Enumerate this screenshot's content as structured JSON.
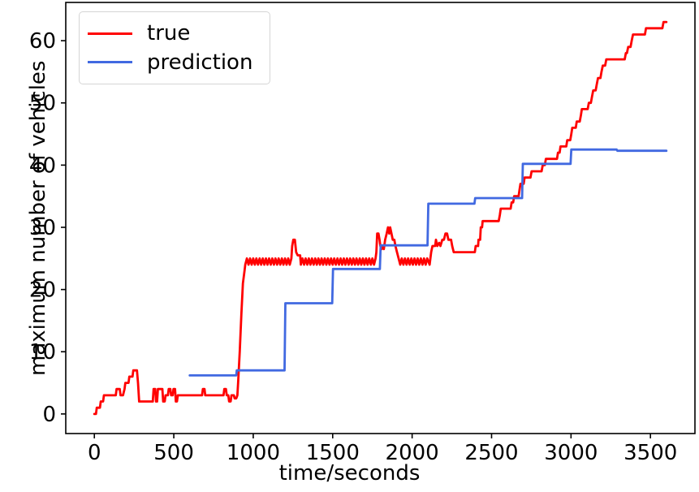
{
  "chart_data": {
    "type": "line",
    "title": "",
    "xlabel": "time/seconds",
    "ylabel": "maximum number of vehicles",
    "xlim": [
      -180,
      3780
    ],
    "ylim": [
      -3.15,
      66.15
    ],
    "x_ticks": [
      0,
      500,
      1000,
      1500,
      2000,
      2500,
      3000,
      3500
    ],
    "y_ticks": [
      0,
      10,
      20,
      30,
      40,
      50,
      60
    ],
    "grid": false,
    "legend_position": "upper-left",
    "spine_color": "#000000",
    "series": [
      {
        "name": "true",
        "color": "#ff0000",
        "points": [
          [
            0,
            0
          ],
          [
            10,
            0
          ],
          [
            15,
            1
          ],
          [
            35,
            1
          ],
          [
            40,
            2
          ],
          [
            55,
            2
          ],
          [
            60,
            3
          ],
          [
            135,
            3
          ],
          [
            140,
            4
          ],
          [
            160,
            4
          ],
          [
            165,
            3
          ],
          [
            180,
            3
          ],
          [
            190,
            4
          ],
          [
            195,
            5
          ],
          [
            215,
            5
          ],
          [
            220,
            6
          ],
          [
            240,
            6
          ],
          [
            245,
            7
          ],
          [
            268,
            7
          ],
          [
            275,
            5
          ],
          [
            282,
            2
          ],
          [
            368,
            2
          ],
          [
            373,
            4
          ],
          [
            383,
            4
          ],
          [
            388,
            2
          ],
          [
            395,
            2
          ],
          [
            400,
            4
          ],
          [
            428,
            4
          ],
          [
            433,
            2
          ],
          [
            443,
            2
          ],
          [
            448,
            3
          ],
          [
            463,
            3
          ],
          [
            468,
            4
          ],
          [
            478,
            4
          ],
          [
            483,
            3
          ],
          [
            493,
            3
          ],
          [
            498,
            4
          ],
          [
            508,
            4
          ],
          [
            513,
            2
          ],
          [
            520,
            2
          ],
          [
            525,
            3
          ],
          [
            678,
            3
          ],
          [
            683,
            4
          ],
          [
            693,
            4
          ],
          [
            698,
            3
          ],
          [
            813,
            3
          ],
          [
            818,
            4
          ],
          [
            828,
            4
          ],
          [
            833,
            3
          ],
          [
            843,
            3
          ],
          [
            848,
            2
          ],
          [
            858,
            2
          ],
          [
            863,
            3
          ],
          [
            878,
            3
          ],
          [
            883,
            2.5
          ],
          [
            893,
            2.5
          ],
          [
            900,
            3
          ],
          [
            905,
            5
          ],
          [
            915,
            10
          ],
          [
            925,
            16
          ],
          [
            935,
            21
          ],
          [
            945,
            23
          ],
          [
            950,
            24
          ],
          [
            960,
            25
          ],
          [
            970,
            24
          ],
          [
            980,
            25
          ],
          [
            990,
            24
          ],
          [
            1000,
            25
          ],
          [
            1010,
            24
          ],
          [
            1020,
            25
          ],
          [
            1030,
            24
          ],
          [
            1040,
            25
          ],
          [
            1050,
            24
          ],
          [
            1060,
            25
          ],
          [
            1070,
            24
          ],
          [
            1080,
            25
          ],
          [
            1090,
            24
          ],
          [
            1100,
            25
          ],
          [
            1110,
            24
          ],
          [
            1120,
            25
          ],
          [
            1130,
            24
          ],
          [
            1140,
            25
          ],
          [
            1150,
            24
          ],
          [
            1160,
            25
          ],
          [
            1170,
            24
          ],
          [
            1180,
            25
          ],
          [
            1190,
            24
          ],
          [
            1200,
            25
          ],
          [
            1210,
            24
          ],
          [
            1220,
            25
          ],
          [
            1230,
            24
          ],
          [
            1240,
            25
          ],
          [
            1245,
            27
          ],
          [
            1252,
            28
          ],
          [
            1262,
            28
          ],
          [
            1270,
            26
          ],
          [
            1280,
            25.5
          ],
          [
            1295,
            25.5
          ],
          [
            1300,
            24
          ],
          [
            1310,
            25
          ],
          [
            1320,
            24
          ],
          [
            1330,
            25
          ],
          [
            1340,
            24
          ],
          [
            1350,
            25
          ],
          [
            1360,
            24
          ],
          [
            1370,
            25
          ],
          [
            1380,
            24
          ],
          [
            1390,
            25
          ],
          [
            1400,
            24
          ],
          [
            1410,
            25
          ],
          [
            1420,
            24
          ],
          [
            1430,
            25
          ],
          [
            1440,
            24
          ],
          [
            1450,
            25
          ],
          [
            1460,
            24
          ],
          [
            1470,
            25
          ],
          [
            1480,
            24
          ],
          [
            1490,
            25
          ],
          [
            1500,
            24
          ],
          [
            1510,
            25
          ],
          [
            1520,
            24
          ],
          [
            1530,
            25
          ],
          [
            1540,
            24
          ],
          [
            1550,
            25
          ],
          [
            1560,
            24
          ],
          [
            1570,
            25
          ],
          [
            1580,
            24
          ],
          [
            1590,
            25
          ],
          [
            1600,
            24
          ],
          [
            1610,
            25
          ],
          [
            1620,
            24
          ],
          [
            1630,
            25
          ],
          [
            1640,
            24
          ],
          [
            1650,
            25
          ],
          [
            1660,
            24
          ],
          [
            1670,
            25
          ],
          [
            1680,
            24
          ],
          [
            1690,
            25
          ],
          [
            1700,
            24
          ],
          [
            1710,
            25
          ],
          [
            1720,
            24
          ],
          [
            1730,
            25
          ],
          [
            1740,
            24
          ],
          [
            1750,
            25
          ],
          [
            1760,
            24
          ],
          [
            1770,
            25
          ],
          [
            1775,
            26
          ],
          [
            1780,
            29
          ],
          [
            1788,
            29
          ],
          [
            1795,
            28
          ],
          [
            1800,
            27
          ],
          [
            1808,
            26.5
          ],
          [
            1815,
            27
          ],
          [
            1822,
            26.5
          ],
          [
            1830,
            28
          ],
          [
            1840,
            29
          ],
          [
            1848,
            30
          ],
          [
            1856,
            29
          ],
          [
            1862,
            30
          ],
          [
            1870,
            29
          ],
          [
            1878,
            28
          ],
          [
            1888,
            28
          ],
          [
            1895,
            27
          ],
          [
            1905,
            26
          ],
          [
            1915,
            25
          ],
          [
            1925,
            24
          ],
          [
            1935,
            25
          ],
          [
            1945,
            24
          ],
          [
            1955,
            25
          ],
          [
            1965,
            24
          ],
          [
            1975,
            25
          ],
          [
            1985,
            24
          ],
          [
            1995,
            25
          ],
          [
            2005,
            24
          ],
          [
            2015,
            25
          ],
          [
            2025,
            24
          ],
          [
            2035,
            25
          ],
          [
            2045,
            24
          ],
          [
            2055,
            25
          ],
          [
            2065,
            24
          ],
          [
            2075,
            25
          ],
          [
            2085,
            24
          ],
          [
            2095,
            25
          ],
          [
            2110,
            24
          ],
          [
            2120,
            26
          ],
          [
            2128,
            27
          ],
          [
            2145,
            27
          ],
          [
            2150,
            28
          ],
          [
            2158,
            27
          ],
          [
            2170,
            27.5
          ],
          [
            2178,
            27
          ],
          [
            2190,
            28
          ],
          [
            2200,
            28
          ],
          [
            2210,
            29
          ],
          [
            2220,
            29
          ],
          [
            2228,
            28
          ],
          [
            2245,
            28
          ],
          [
            2252,
            27
          ],
          [
            2262,
            26
          ],
          [
            2290,
            26
          ],
          [
            2395,
            26
          ],
          [
            2400,
            27
          ],
          [
            2415,
            27
          ],
          [
            2418,
            28
          ],
          [
            2428,
            28
          ],
          [
            2432,
            30
          ],
          [
            2440,
            30
          ],
          [
            2444,
            31
          ],
          [
            2545,
            31
          ],
          [
            2552,
            32
          ],
          [
            2558,
            33
          ],
          [
            2620,
            33
          ],
          [
            2626,
            34
          ],
          [
            2636,
            34
          ],
          [
            2642,
            35
          ],
          [
            2670,
            35
          ],
          [
            2676,
            36
          ],
          [
            2682,
            37
          ],
          [
            2702,
            37
          ],
          [
            2708,
            38
          ],
          [
            2745,
            38
          ],
          [
            2752,
            39
          ],
          [
            2815,
            39
          ],
          [
            2822,
            40
          ],
          [
            2835,
            40
          ],
          [
            2842,
            41
          ],
          [
            2912,
            41
          ],
          [
            2918,
            42
          ],
          [
            2928,
            42
          ],
          [
            2934,
            43
          ],
          [
            2970,
            43
          ],
          [
            2976,
            44
          ],
          [
            2995,
            44
          ],
          [
            3002,
            45
          ],
          [
            3008,
            46
          ],
          [
            3030,
            46
          ],
          [
            3036,
            47
          ],
          [
            3055,
            47
          ],
          [
            3062,
            48
          ],
          [
            3068,
            49
          ],
          [
            3105,
            49
          ],
          [
            3112,
            50
          ],
          [
            3125,
            50
          ],
          [
            3132,
            51
          ],
          [
            3140,
            52
          ],
          [
            3155,
            52
          ],
          [
            3162,
            53
          ],
          [
            3170,
            54
          ],
          [
            3185,
            54
          ],
          [
            3192,
            55
          ],
          [
            3200,
            56
          ],
          [
            3215,
            56
          ],
          [
            3222,
            57
          ],
          [
            3338,
            57
          ],
          [
            3345,
            58
          ],
          [
            3352,
            58
          ],
          [
            3360,
            59
          ],
          [
            3375,
            59
          ],
          [
            3382,
            60
          ],
          [
            3390,
            61
          ],
          [
            3465,
            61
          ],
          [
            3472,
            62
          ],
          [
            3490,
            62
          ],
          [
            3575,
            62
          ],
          [
            3582,
            63
          ],
          [
            3600,
            63
          ]
        ]
      },
      {
        "name": "prediction",
        "color": "#4169e1",
        "points": [
          [
            600,
            6.2
          ],
          [
            893,
            6.2
          ],
          [
            896,
            7.0
          ],
          [
            1197,
            7.0
          ],
          [
            1202,
            17.8
          ],
          [
            1497,
            17.8
          ],
          [
            1502,
            23.3
          ],
          [
            1797,
            23.3
          ],
          [
            1802,
            27.1
          ],
          [
            2097,
            27.1
          ],
          [
            2102,
            33.8
          ],
          [
            2392,
            33.8
          ],
          [
            2397,
            34.7
          ],
          [
            2692,
            34.7
          ],
          [
            2697,
            40.2
          ],
          [
            2997,
            40.2
          ],
          [
            3002,
            42.5
          ],
          [
            3287,
            42.5
          ],
          [
            3292,
            42.3
          ],
          [
            3600,
            42.3
          ]
        ]
      }
    ]
  },
  "legend": {
    "items": [
      {
        "label": "true",
        "color": "#ff0000"
      },
      {
        "label": "prediction",
        "color": "#4169e1"
      }
    ]
  }
}
